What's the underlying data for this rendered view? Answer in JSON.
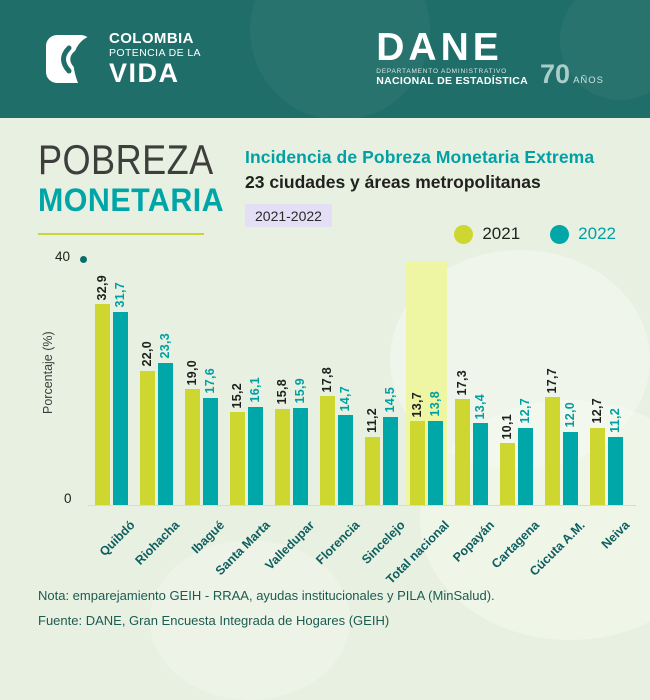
{
  "colors": {
    "header_bg": "#206e69",
    "page_bg": "#e8f1e1",
    "accent_teal": "#00a5a8",
    "accent_yellow_green": "#cdd72f",
    "badge_bg": "#e5def7",
    "highlight_band": "#eef6a4"
  },
  "header": {
    "brand": {
      "line1": "COLOMBIA",
      "line2": "POTENCIA DE LA",
      "line3": "VIDA"
    },
    "dane": {
      "name": "DANE",
      "dept_line1": "DEPARTAMENTO ADMINISTRATIVO",
      "dept_line2": "NACIONAL DE ESTADÍSTICA",
      "anniversary_number": "70",
      "anniversary_label": "AÑOS"
    }
  },
  "title_block": {
    "line1": "POBREZA",
    "line2": "MONETARIA"
  },
  "chart_header": {
    "title": "Incidencia de Pobreza Monetaria Extrema",
    "subtitle": "23 ciudades y áreas metropolitanas",
    "period_badge": "2021-2022"
  },
  "legend": [
    {
      "label": "2021",
      "color": "#cdd72f"
    },
    {
      "label": "2022",
      "color": "#00a7a9"
    }
  ],
  "chart_data": {
    "type": "bar",
    "title": "Incidencia de Pobreza Monetaria Extrema",
    "subtitle": "23 ciudades y áreas metropolitanas",
    "period": "2021-2022",
    "ylabel": "Porcentaje (%)",
    "ylim": [
      0,
      40
    ],
    "ytick_labels": [
      "0",
      "40"
    ],
    "grid": false,
    "legend_position": "top-right",
    "decimal_separator": ",",
    "categories": [
      "Quibdó",
      "Riohacha",
      "Ibagué",
      "Santa Marta",
      "Valledupar",
      "Florencia",
      "Sincelejo",
      "Total nacional",
      "Popayán",
      "Cartagena",
      "Cúcuta A.M.",
      "Neiva"
    ],
    "series": [
      {
        "name": "2021",
        "color": "#cdd72f",
        "label_color": "#20201e",
        "values": [
          32.9,
          22.0,
          19.0,
          15.2,
          15.8,
          17.8,
          11.2,
          13.7,
          17.3,
          10.1,
          17.7,
          12.7
        ]
      },
      {
        "name": "2022",
        "color": "#00a7a9",
        "label_color": "#009fa3",
        "values": [
          31.7,
          23.3,
          17.6,
          16.1,
          15.9,
          14.7,
          14.5,
          13.8,
          13.4,
          12.7,
          12.0,
          11.2
        ]
      }
    ],
    "highlighted_category": "Total nacional",
    "xlabel_color": "#0f5e60"
  },
  "notes": {
    "note": "Nota: emparejamiento GEIH - RRAA, ayudas institucionales y PILA (MinSalud).",
    "source": "Fuente: DANE, Gran Encuesta Integrada de Hogares (GEIH)"
  }
}
